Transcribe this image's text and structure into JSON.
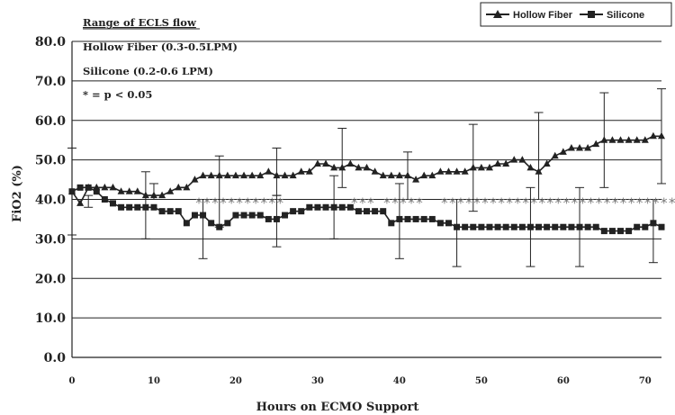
{
  "chart_data": {
    "type": "line",
    "xlabel": "Hours on ECMO Support",
    "ylabel": "FiO2 (%)",
    "ylim": [
      0,
      80
    ],
    "xlim": [
      0,
      72
    ],
    "y_ticks": [
      "0.0",
      "10.0",
      "20.0",
      "30.0",
      "40.0",
      "50.0",
      "60.0",
      "70.0",
      "80.0"
    ],
    "x_ticks": [
      "0",
      "10",
      "20",
      "30",
      "40",
      "50",
      "60",
      "70"
    ],
    "grid": "horizontal",
    "legend_position": "top-right",
    "annotations": {
      "title": "Range of ECLS flow",
      "line1": "Hollow Fiber  (0.3-0.5LPM)",
      "line2": "Silicone (0.2-0.6 LPM)",
      "line3": "* = p < 0.05"
    },
    "significance_markers": [
      {
        "text": "***********",
        "x_start": 15
      },
      {
        "text": "***  *****",
        "x_start": 34
      },
      {
        "text": "*****************************",
        "x_start": 45
      }
    ],
    "series": [
      {
        "name": "Hollow Fiber",
        "marker": "triangle",
        "x": [
          0,
          1,
          2,
          3,
          4,
          5,
          6,
          7,
          8,
          9,
          10,
          11,
          12,
          13,
          14,
          15,
          16,
          17,
          18,
          19,
          20,
          21,
          22,
          23,
          24,
          25,
          26,
          27,
          28,
          29,
          30,
          31,
          32,
          33,
          34,
          35,
          36,
          37,
          38,
          39,
          40,
          41,
          42,
          43,
          44,
          45,
          46,
          47,
          48,
          49,
          50,
          51,
          52,
          53,
          54,
          55,
          56,
          57,
          58,
          59,
          60,
          61,
          62,
          63,
          64,
          65,
          66,
          67,
          68,
          69,
          70,
          71,
          72
        ],
        "values": [
          42,
          39,
          43,
          43,
          43,
          43,
          42,
          42,
          42,
          41,
          41,
          41,
          42,
          43,
          43,
          45,
          46,
          46,
          46,
          46,
          46,
          46,
          46,
          46,
          47,
          46,
          46,
          46,
          47,
          47,
          49,
          49,
          48,
          48,
          49,
          48,
          48,
          47,
          46,
          46,
          46,
          46,
          45,
          46,
          46,
          47,
          47,
          47,
          47,
          48,
          48,
          48,
          49,
          49,
          50,
          50,
          48,
          47,
          49,
          51,
          52,
          53,
          53,
          53,
          54,
          55,
          55,
          55,
          55,
          55,
          55,
          56,
          56
        ]
      },
      {
        "name": "Silicone",
        "marker": "square",
        "x": [
          0,
          1,
          2,
          3,
          4,
          5,
          6,
          7,
          8,
          9,
          10,
          11,
          12,
          13,
          14,
          15,
          16,
          17,
          18,
          19,
          20,
          21,
          22,
          23,
          24,
          25,
          26,
          27,
          28,
          29,
          30,
          31,
          32,
          33,
          34,
          35,
          36,
          37,
          38,
          39,
          40,
          41,
          42,
          43,
          44,
          45,
          46,
          47,
          48,
          49,
          50,
          51,
          52,
          53,
          54,
          55,
          56,
          57,
          58,
          59,
          60,
          61,
          62,
          63,
          64,
          65,
          66,
          67,
          68,
          69,
          70,
          71,
          72
        ],
        "values": [
          42,
          43,
          43,
          42,
          40,
          39,
          38,
          38,
          38,
          38,
          38,
          37,
          37,
          37,
          34,
          36,
          36,
          34,
          33,
          34,
          36,
          36,
          36,
          36,
          35,
          35,
          36,
          37,
          37,
          38,
          38,
          38,
          38,
          38,
          38,
          37,
          37,
          37,
          37,
          34,
          35,
          35,
          35,
          35,
          35,
          34,
          34,
          33,
          33,
          33,
          33,
          33,
          33,
          33,
          33,
          33,
          33,
          33,
          33,
          33,
          33,
          33,
          33,
          33,
          33,
          32,
          32,
          32,
          32,
          33,
          33,
          34,
          33
        ]
      }
    ],
    "error_bars": [
      {
        "series": "Hollow Fiber",
        "x": 0,
        "lo": 31,
        "hi": 53
      },
      {
        "series": "Hollow Fiber",
        "x": 9,
        "lo": 30,
        "hi": 47
      },
      {
        "series": "Hollow Fiber",
        "x": 18,
        "lo": 33,
        "hi": 51
      },
      {
        "series": "Hollow Fiber",
        "x": 25,
        "lo": 41,
        "hi": 53
      },
      {
        "series": "Hollow Fiber",
        "x": 33,
        "lo": 43,
        "hi": 58
      },
      {
        "series": "Hollow Fiber",
        "x": 41,
        "lo": 40,
        "hi": 52
      },
      {
        "series": "Hollow Fiber",
        "x": 49,
        "lo": 37,
        "hi": 59
      },
      {
        "series": "Hollow Fiber",
        "x": 57,
        "lo": 40,
        "hi": 62
      },
      {
        "series": "Hollow Fiber",
        "x": 65,
        "lo": 43,
        "hi": 67
      },
      {
        "series": "Hollow Fiber",
        "x": 72,
        "lo": 44,
        "hi": 68
      },
      {
        "series": "Silicone",
        "x": 2,
        "lo": 38,
        "hi": 41
      },
      {
        "series": "Silicone",
        "x": 10,
        "lo": 40,
        "hi": 44
      },
      {
        "series": "Silicone",
        "x": 16,
        "lo": 25,
        "hi": 40
      },
      {
        "series": "Silicone",
        "x": 25,
        "lo": 28,
        "hi": 41
      },
      {
        "series": "Silicone",
        "x": 32,
        "lo": 30,
        "hi": 46
      },
      {
        "series": "Silicone",
        "x": 40,
        "lo": 25,
        "hi": 44
      },
      {
        "series": "Silicone",
        "x": 47,
        "lo": 23,
        "hi": 40
      },
      {
        "series": "Silicone",
        "x": 56,
        "lo": 23,
        "hi": 43
      },
      {
        "series": "Silicone",
        "x": 62,
        "lo": 23,
        "hi": 43
      },
      {
        "series": "Silicone",
        "x": 71,
        "lo": 24,
        "hi": 40
      }
    ]
  }
}
